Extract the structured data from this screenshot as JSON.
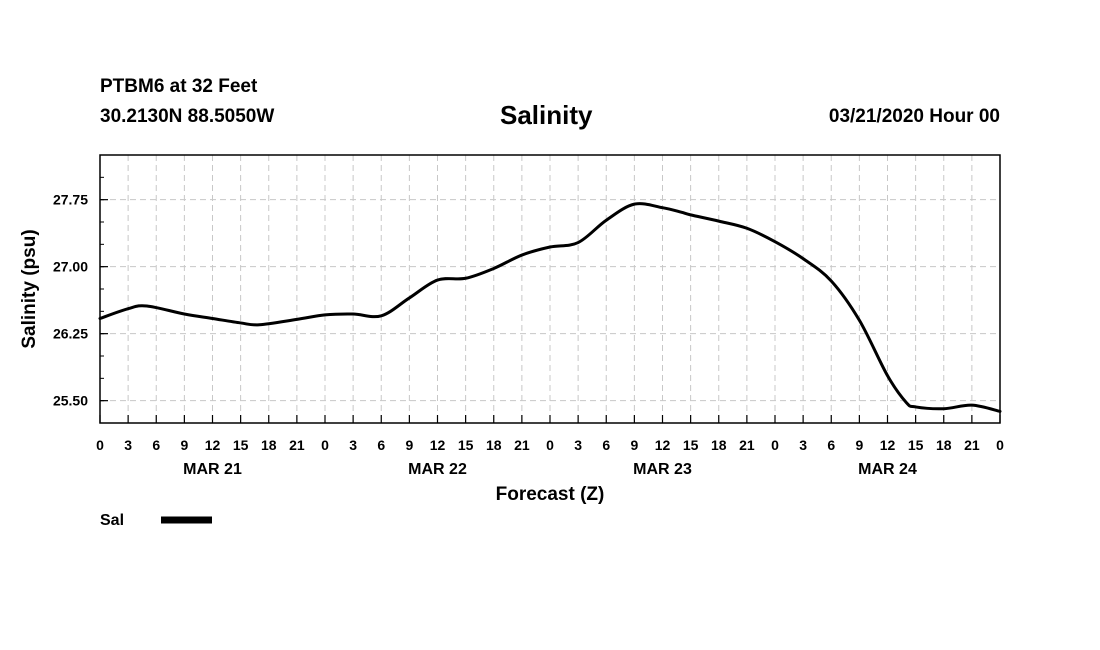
{
  "header": {
    "station": "PTBM6 at 32 Feet",
    "location": "30.2130N 88.5050W",
    "title": "Salinity",
    "run": "03/21/2020 Hour 00"
  },
  "chart_data": {
    "type": "line",
    "title": "Salinity",
    "xlabel": "Forecast (Z)",
    "ylabel": "Salinity (psu)",
    "x_unit": "forecast hours from 03/21/2020 00Z",
    "xlim": [
      0,
      96
    ],
    "ylim": [
      25.25,
      28.25
    ],
    "y_ticks": [
      25.5,
      26.25,
      27.0,
      27.75
    ],
    "y_tick_labels": [
      "25.50",
      "26.25",
      "27.00",
      "27.75"
    ],
    "x_tick_hours": [
      0,
      3,
      6,
      9,
      12,
      15,
      18,
      21,
      24,
      27,
      30,
      33,
      36,
      39,
      42,
      45,
      48,
      51,
      54,
      57,
      60,
      63,
      66,
      69,
      72,
      75,
      78,
      81,
      84,
      87,
      90,
      93,
      96
    ],
    "x_tick_labels": [
      "0",
      "3",
      "6",
      "9",
      "12",
      "15",
      "18",
      "21",
      "0",
      "3",
      "6",
      "9",
      "12",
      "15",
      "18",
      "21",
      "0",
      "3",
      "6",
      "9",
      "12",
      "15",
      "18",
      "21",
      "0",
      "3",
      "6",
      "9",
      "12",
      "15",
      "18",
      "21",
      "0"
    ],
    "day_labels": [
      {
        "label": "MAR 21",
        "hour": 12
      },
      {
        "label": "MAR 22",
        "hour": 36
      },
      {
        "label": "MAR 23",
        "hour": 60
      },
      {
        "label": "MAR 24",
        "hour": 84
      }
    ],
    "grid": true,
    "series": [
      {
        "name": "Sal",
        "color": "#000000",
        "x": [
          0,
          3,
          5,
          9,
          12,
          15,
          17,
          21,
          24,
          27,
          30,
          33,
          36,
          39,
          42,
          45,
          48,
          51,
          54,
          57,
          60,
          62,
          63,
          66,
          69,
          72,
          75,
          78,
          81,
          84,
          86,
          87,
          90,
          93,
          96
        ],
        "y": [
          26.42,
          26.53,
          26.56,
          26.47,
          26.42,
          26.37,
          26.35,
          26.41,
          26.46,
          26.47,
          26.45,
          26.65,
          26.85,
          26.87,
          26.98,
          27.13,
          27.22,
          27.27,
          27.52,
          27.7,
          27.66,
          27.61,
          27.58,
          27.51,
          27.43,
          27.28,
          27.09,
          26.84,
          26.4,
          25.78,
          25.48,
          25.43,
          25.41,
          25.45,
          25.38
        ]
      }
    ],
    "legend": {
      "position": "bottom-left",
      "entries": [
        "Sal"
      ]
    }
  }
}
